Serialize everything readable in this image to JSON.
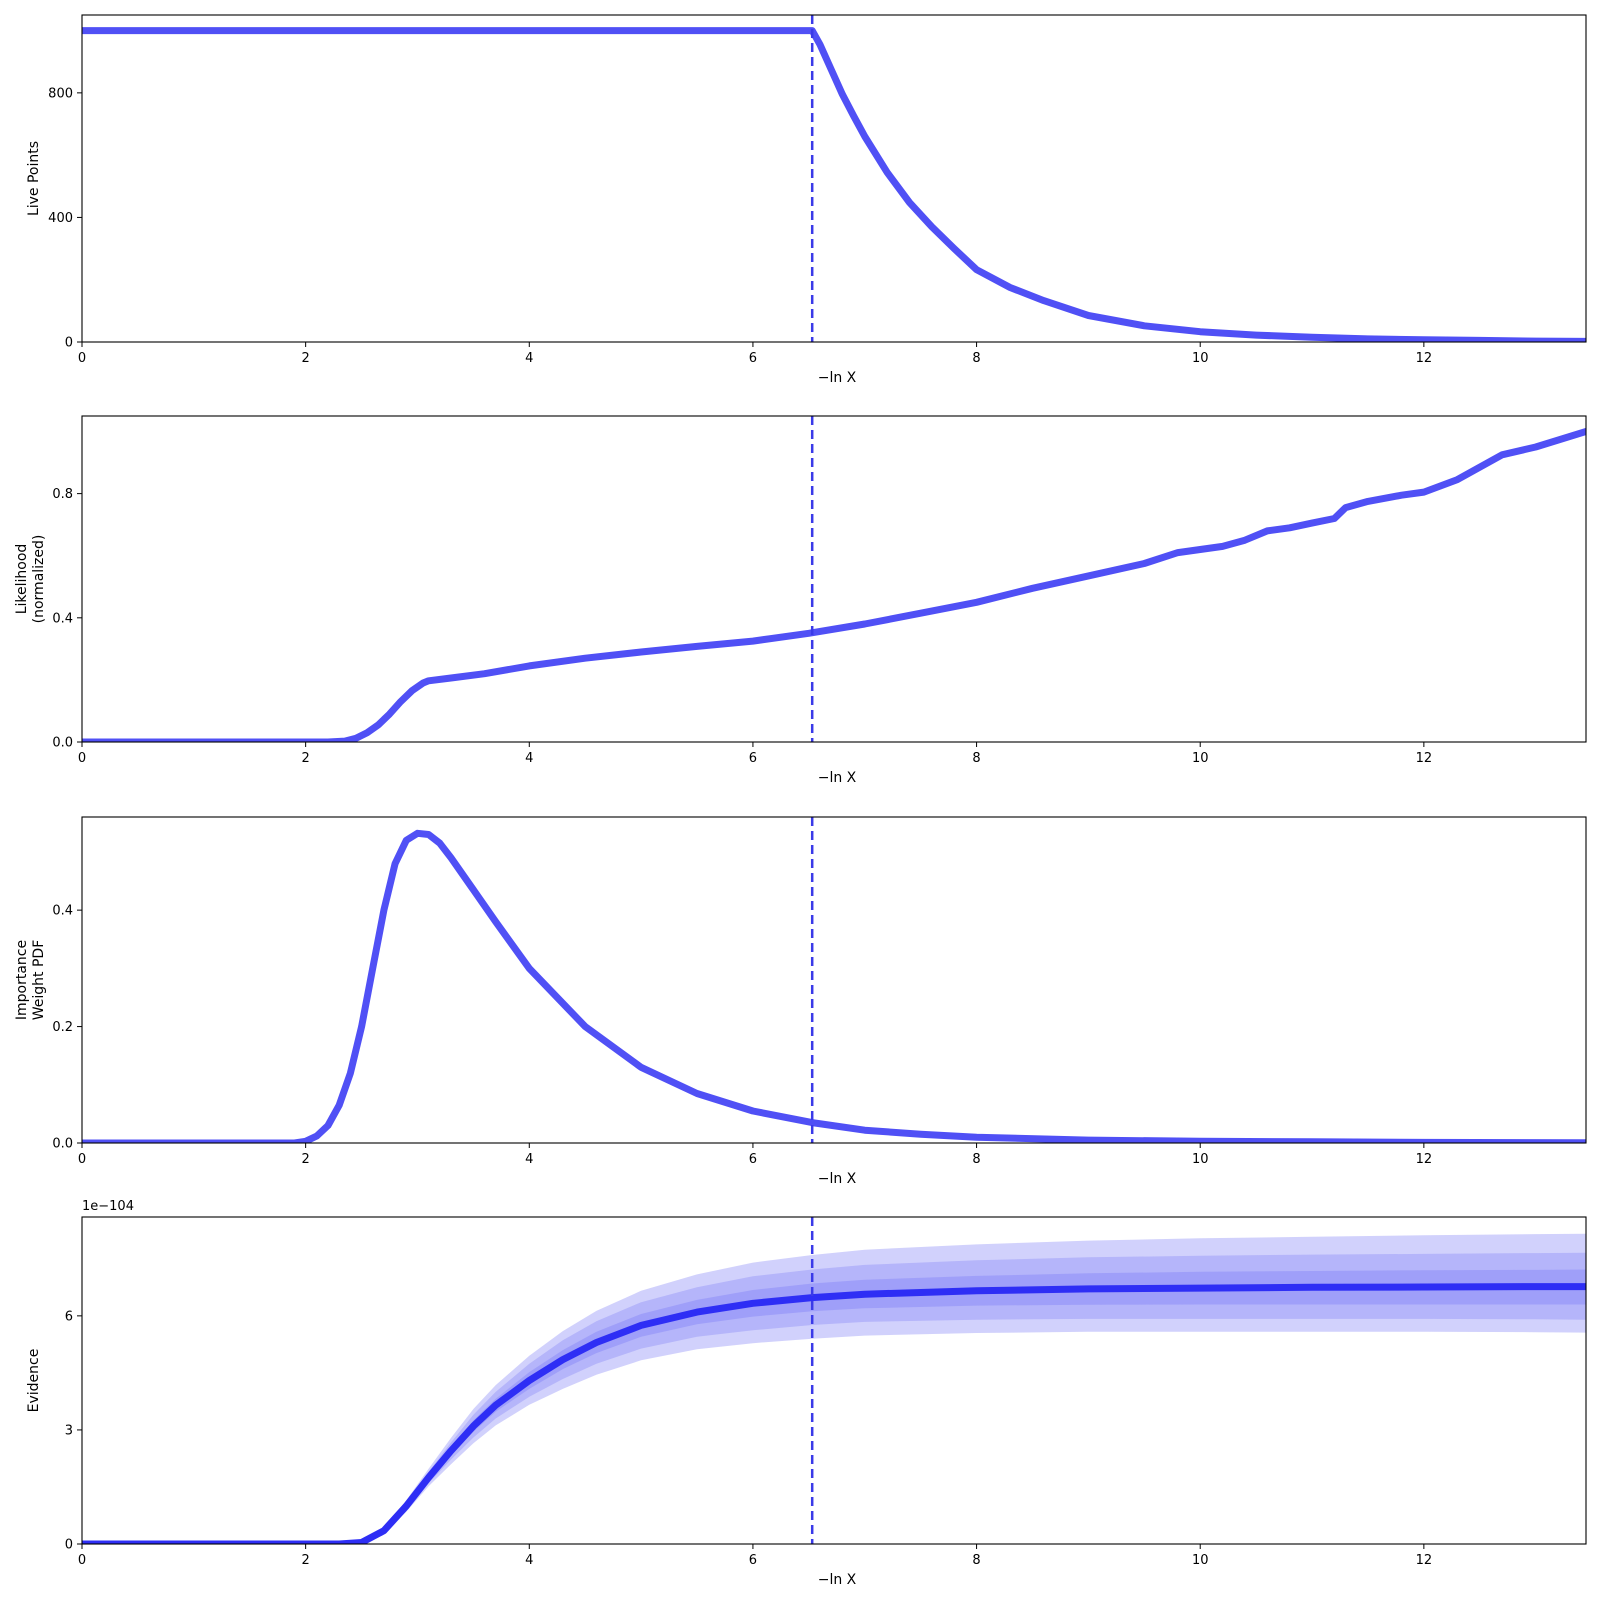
{
  "figure": {
    "line_color": "#5050f5",
    "evidence_line_color": "#2e2ef5",
    "band_color": "#5a5af5",
    "band_opacities": [
      0.28,
      0.24,
      0.24
    ],
    "vline_color": "#3a3ae8"
  },
  "chart_data": [
    {
      "type": "line",
      "ylabel_lines": [
        "Live Points"
      ],
      "xlabel": "−ln X",
      "xlim": [
        0,
        13.45
      ],
      "ylim": [
        0,
        1050
      ],
      "xticks": [
        0,
        2,
        4,
        6,
        8,
        10,
        12
      ],
      "yticks": [
        0,
        400,
        800
      ],
      "vline_x": 6.53,
      "series": [
        {
          "x": [
            0,
            6.53,
            6.6,
            6.7,
            6.8,
            6.9,
            7.0,
            7.2,
            7.4,
            7.6,
            7.8,
            8.0,
            8.3,
            8.6,
            9.0,
            9.5,
            10.0,
            10.5,
            11.0,
            11.5,
            12.0,
            12.5,
            13.0,
            13.45
          ],
          "y": [
            1000,
            1000,
            955,
            875,
            795,
            726,
            660,
            545,
            448,
            370,
            300,
            232,
            175,
            133,
            85,
            52,
            33,
            22,
            15,
            10,
            7,
            5,
            3,
            2
          ]
        }
      ]
    },
    {
      "type": "line",
      "ylabel_lines": [
        "Likelihood",
        "(normalized)"
      ],
      "xlabel": "−ln X",
      "xlim": [
        0,
        13.45
      ],
      "ylim": [
        0,
        1.05
      ],
      "xticks": [
        0,
        2,
        4,
        6,
        8,
        10,
        12
      ],
      "yticks": [
        0.0,
        0.4,
        0.8
      ],
      "ytick_labels": [
        "0.0",
        "0.4",
        "0.8"
      ],
      "vline_x": 6.53,
      "series": [
        {
          "x": [
            0,
            2.2,
            2.35,
            2.45,
            2.55,
            2.65,
            2.75,
            2.85,
            2.95,
            3.05,
            3.1,
            3.3,
            3.6,
            4.0,
            4.5,
            5.0,
            5.5,
            6.0,
            6.5,
            7.0,
            7.5,
            8.0,
            8.5,
            9.0,
            9.5,
            9.8,
            10.0,
            10.2,
            10.4,
            10.6,
            10.8,
            11.0,
            11.2,
            11.3,
            11.5,
            11.8,
            12.0,
            12.3,
            12.7,
            13.0,
            13.45
          ],
          "y": [
            0,
            0,
            0.003,
            0.012,
            0.03,
            0.055,
            0.09,
            0.13,
            0.165,
            0.19,
            0.197,
            0.206,
            0.22,
            0.245,
            0.27,
            0.29,
            0.308,
            0.325,
            0.35,
            0.38,
            0.415,
            0.45,
            0.495,
            0.535,
            0.575,
            0.61,
            0.62,
            0.63,
            0.65,
            0.68,
            0.69,
            0.705,
            0.72,
            0.755,
            0.775,
            0.795,
            0.805,
            0.845,
            0.925,
            0.95,
            1.0
          ]
        }
      ]
    },
    {
      "type": "line",
      "ylabel_lines": [
        "Importance",
        "Weight PDF"
      ],
      "xlabel": "−ln X",
      "xlim": [
        0,
        13.45
      ],
      "ylim": [
        0,
        0.56
      ],
      "xticks": [
        0,
        2,
        4,
        6,
        8,
        10,
        12
      ],
      "yticks": [
        0.0,
        0.2,
        0.4
      ],
      "ytick_labels": [
        "0.0",
        "0.2",
        "0.4"
      ],
      "vline_x": 6.53,
      "series": [
        {
          "x": [
            0,
            1.9,
            2.0,
            2.1,
            2.2,
            2.3,
            2.4,
            2.5,
            2.6,
            2.7,
            2.8,
            2.9,
            3.0,
            3.1,
            3.2,
            3.3,
            3.5,
            3.7,
            4.0,
            4.5,
            5.0,
            5.5,
            6.0,
            6.53,
            7.0,
            7.5,
            8.0,
            9.0,
            10.0,
            11.0,
            12.0,
            13.45
          ],
          "y": [
            0,
            0,
            0.003,
            0.012,
            0.03,
            0.065,
            0.12,
            0.2,
            0.3,
            0.4,
            0.48,
            0.52,
            0.532,
            0.53,
            0.515,
            0.49,
            0.435,
            0.38,
            0.3,
            0.2,
            0.13,
            0.085,
            0.055,
            0.035,
            0.022,
            0.015,
            0.01,
            0.005,
            0.003,
            0.002,
            0.001,
            0.0005
          ]
        }
      ]
    },
    {
      "type": "area",
      "ylabel_lines": [
        "Evidence"
      ],
      "xlabel": "−ln X",
      "offset_label": "1e−104",
      "xlim": [
        0,
        13.45
      ],
      "ylim": [
        0,
        8.6
      ],
      "xticks": [
        0,
        2,
        4,
        6,
        8,
        10,
        12
      ],
      "yticks": [
        0,
        3,
        6
      ],
      "vline_x": 6.53,
      "x": [
        0,
        2.3,
        2.5,
        2.7,
        2.9,
        3.1,
        3.3,
        3.5,
        3.7,
        4.0,
        4.3,
        4.6,
        5.0,
        5.5,
        6.0,
        6.53,
        7.0,
        8.0,
        9.0,
        10.0,
        11.0,
        12.0,
        13.0,
        13.45
      ],
      "series": [
        {
          "name": "median",
          "values": [
            0,
            0,
            0.04,
            0.35,
            1.0,
            1.75,
            2.45,
            3.1,
            3.65,
            4.3,
            4.85,
            5.3,
            5.75,
            6.1,
            6.33,
            6.48,
            6.57,
            6.66,
            6.71,
            6.73,
            6.75,
            6.76,
            6.77,
            6.77
          ]
        },
        {
          "name": "band1_lower",
          "values": [
            0,
            0,
            0.04,
            0.33,
            0.95,
            1.68,
            2.33,
            2.95,
            3.48,
            4.08,
            4.6,
            5.02,
            5.45,
            5.78,
            5.98,
            6.12,
            6.2,
            6.27,
            6.29,
            6.3,
            6.3,
            6.3,
            6.3,
            6.3
          ]
        },
        {
          "name": "band1_upper",
          "values": [
            0,
            0,
            0.04,
            0.37,
            1.05,
            1.82,
            2.55,
            3.25,
            3.82,
            4.52,
            5.1,
            5.58,
            6.05,
            6.42,
            6.68,
            6.85,
            6.95,
            7.05,
            7.12,
            7.16,
            7.18,
            7.2,
            7.21,
            7.22
          ]
        },
        {
          "name": "band2_lower",
          "values": [
            0,
            0,
            0.04,
            0.31,
            0.9,
            1.6,
            2.22,
            2.8,
            3.3,
            3.87,
            4.34,
            4.74,
            5.14,
            5.45,
            5.62,
            5.76,
            5.84,
            5.9,
            5.92,
            5.92,
            5.92,
            5.92,
            5.91,
            5.9
          ]
        },
        {
          "name": "band2_upper",
          "values": [
            0,
            0,
            0.04,
            0.39,
            1.1,
            1.9,
            2.67,
            3.4,
            4.0,
            4.74,
            5.36,
            5.86,
            6.36,
            6.75,
            7.04,
            7.22,
            7.34,
            7.46,
            7.54,
            7.58,
            7.61,
            7.63,
            7.65,
            7.66
          ]
        },
        {
          "name": "band3_lower",
          "values": [
            0,
            0,
            0.04,
            0.29,
            0.85,
            1.52,
            2.1,
            2.65,
            3.12,
            3.66,
            4.08,
            4.45,
            4.83,
            5.12,
            5.28,
            5.4,
            5.48,
            5.55,
            5.58,
            5.58,
            5.58,
            5.58,
            5.57,
            5.56
          ]
        },
        {
          "name": "band3_upper",
          "values": [
            0,
            0,
            0.04,
            0.41,
            1.15,
            1.98,
            2.79,
            3.55,
            4.18,
            4.95,
            5.6,
            6.13,
            6.66,
            7.09,
            7.4,
            7.6,
            7.74,
            7.88,
            7.98,
            8.04,
            8.08,
            8.12,
            8.15,
            8.16
          ]
        }
      ]
    }
  ]
}
